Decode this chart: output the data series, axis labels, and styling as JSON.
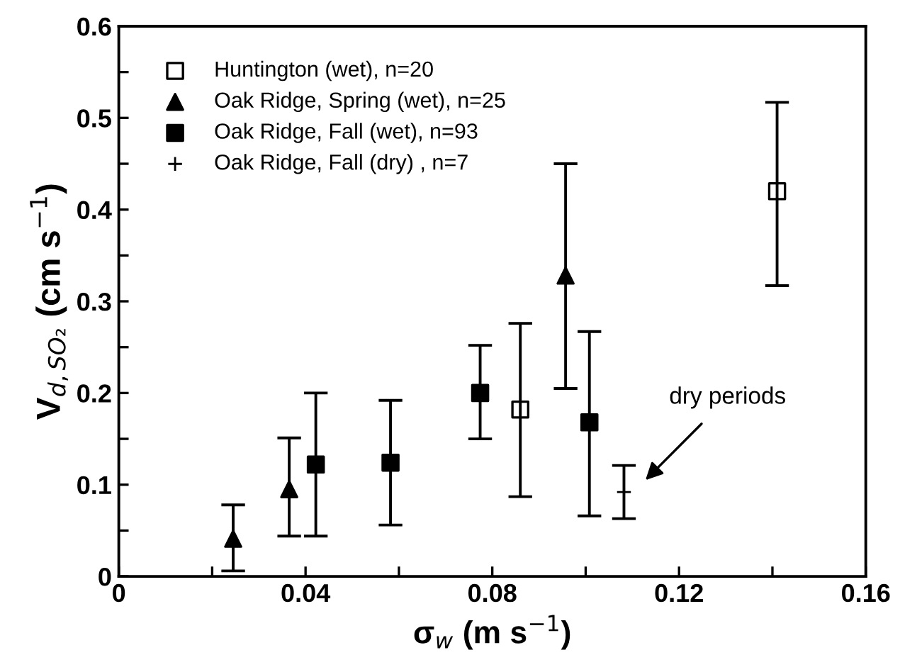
{
  "chart_data": {
    "type": "scatter",
    "xlabel": "σ$_{w}$ (m s$^{−1}$)",
    "ylabel": "V$_{d,SO₂}$ (cm s$^{−1}$)",
    "xlim": [
      0,
      0.16
    ],
    "ylim": [
      0,
      0.6
    ],
    "xticks": [
      0,
      {
        "value": 0.02,
        "label": null
      },
      0.04,
      {
        "value": 0.06,
        "label": null
      },
      0.08,
      {
        "value": 0.1,
        "label": null
      },
      0.12,
      {
        "value": 0.14,
        "label": null
      },
      0.16
    ],
    "yticks": [
      0,
      {
        "value": 0.05,
        "label": null
      },
      0.1,
      {
        "value": 0.15,
        "label": null
      },
      0.2,
      {
        "value": 0.25,
        "label": null
      },
      0.3,
      {
        "value": 0.35,
        "label": null
      },
      0.4,
      {
        "value": 0.45,
        "label": null
      },
      0.5,
      {
        "value": 0.55,
        "label": null
      },
      0.6
    ],
    "grid": false,
    "legend": "top left",
    "series": [
      {
        "name": "Huntington (wet), n=20",
        "color": "#ffffff",
        "marker": "square",
        "x": [
          0.086,
          0.141
        ],
        "values": [
          0.182,
          0.42
        ],
        "errors": [
          [
            0.087,
            0.276
          ],
          [
            0.317,
            0.517
          ]
        ]
      },
      {
        "name": "Oak Ridge, Spring (wet), n=25",
        "color": "#000000",
        "marker": "triangle",
        "x": [
          0.0245,
          0.0365,
          0.0957
        ],
        "values": [
          0.041,
          0.095,
          0.328
        ],
        "errors": [
          [
            0.006,
            0.078
          ],
          [
            0.044,
            0.151
          ],
          [
            0.205,
            0.45
          ]
        ]
      },
      {
        "name": "Oak Ridge, Fall (wet), n=93",
        "color": "#000000",
        "marker": "square",
        "x": [
          0.0422,
          0.0582,
          0.0774,
          0.1008
        ],
        "values": [
          0.122,
          0.124,
          0.2,
          0.168
        ],
        "errors": [
          [
            0.044,
            0.2
          ],
          [
            0.056,
            0.192
          ],
          [
            0.15,
            0.252
          ],
          [
            0.066,
            0.267
          ]
        ]
      },
      {
        "name": "Oak Ridge, Fall (dry) , n=7",
        "color": "#000000",
        "marker": "cross",
        "x": [
          0.1082
        ],
        "values": [
          0.092
        ],
        "errors": [
          [
            0.063,
            0.121
          ]
        ]
      }
    ],
    "annotations": [
      "dry periods"
    ]
  }
}
